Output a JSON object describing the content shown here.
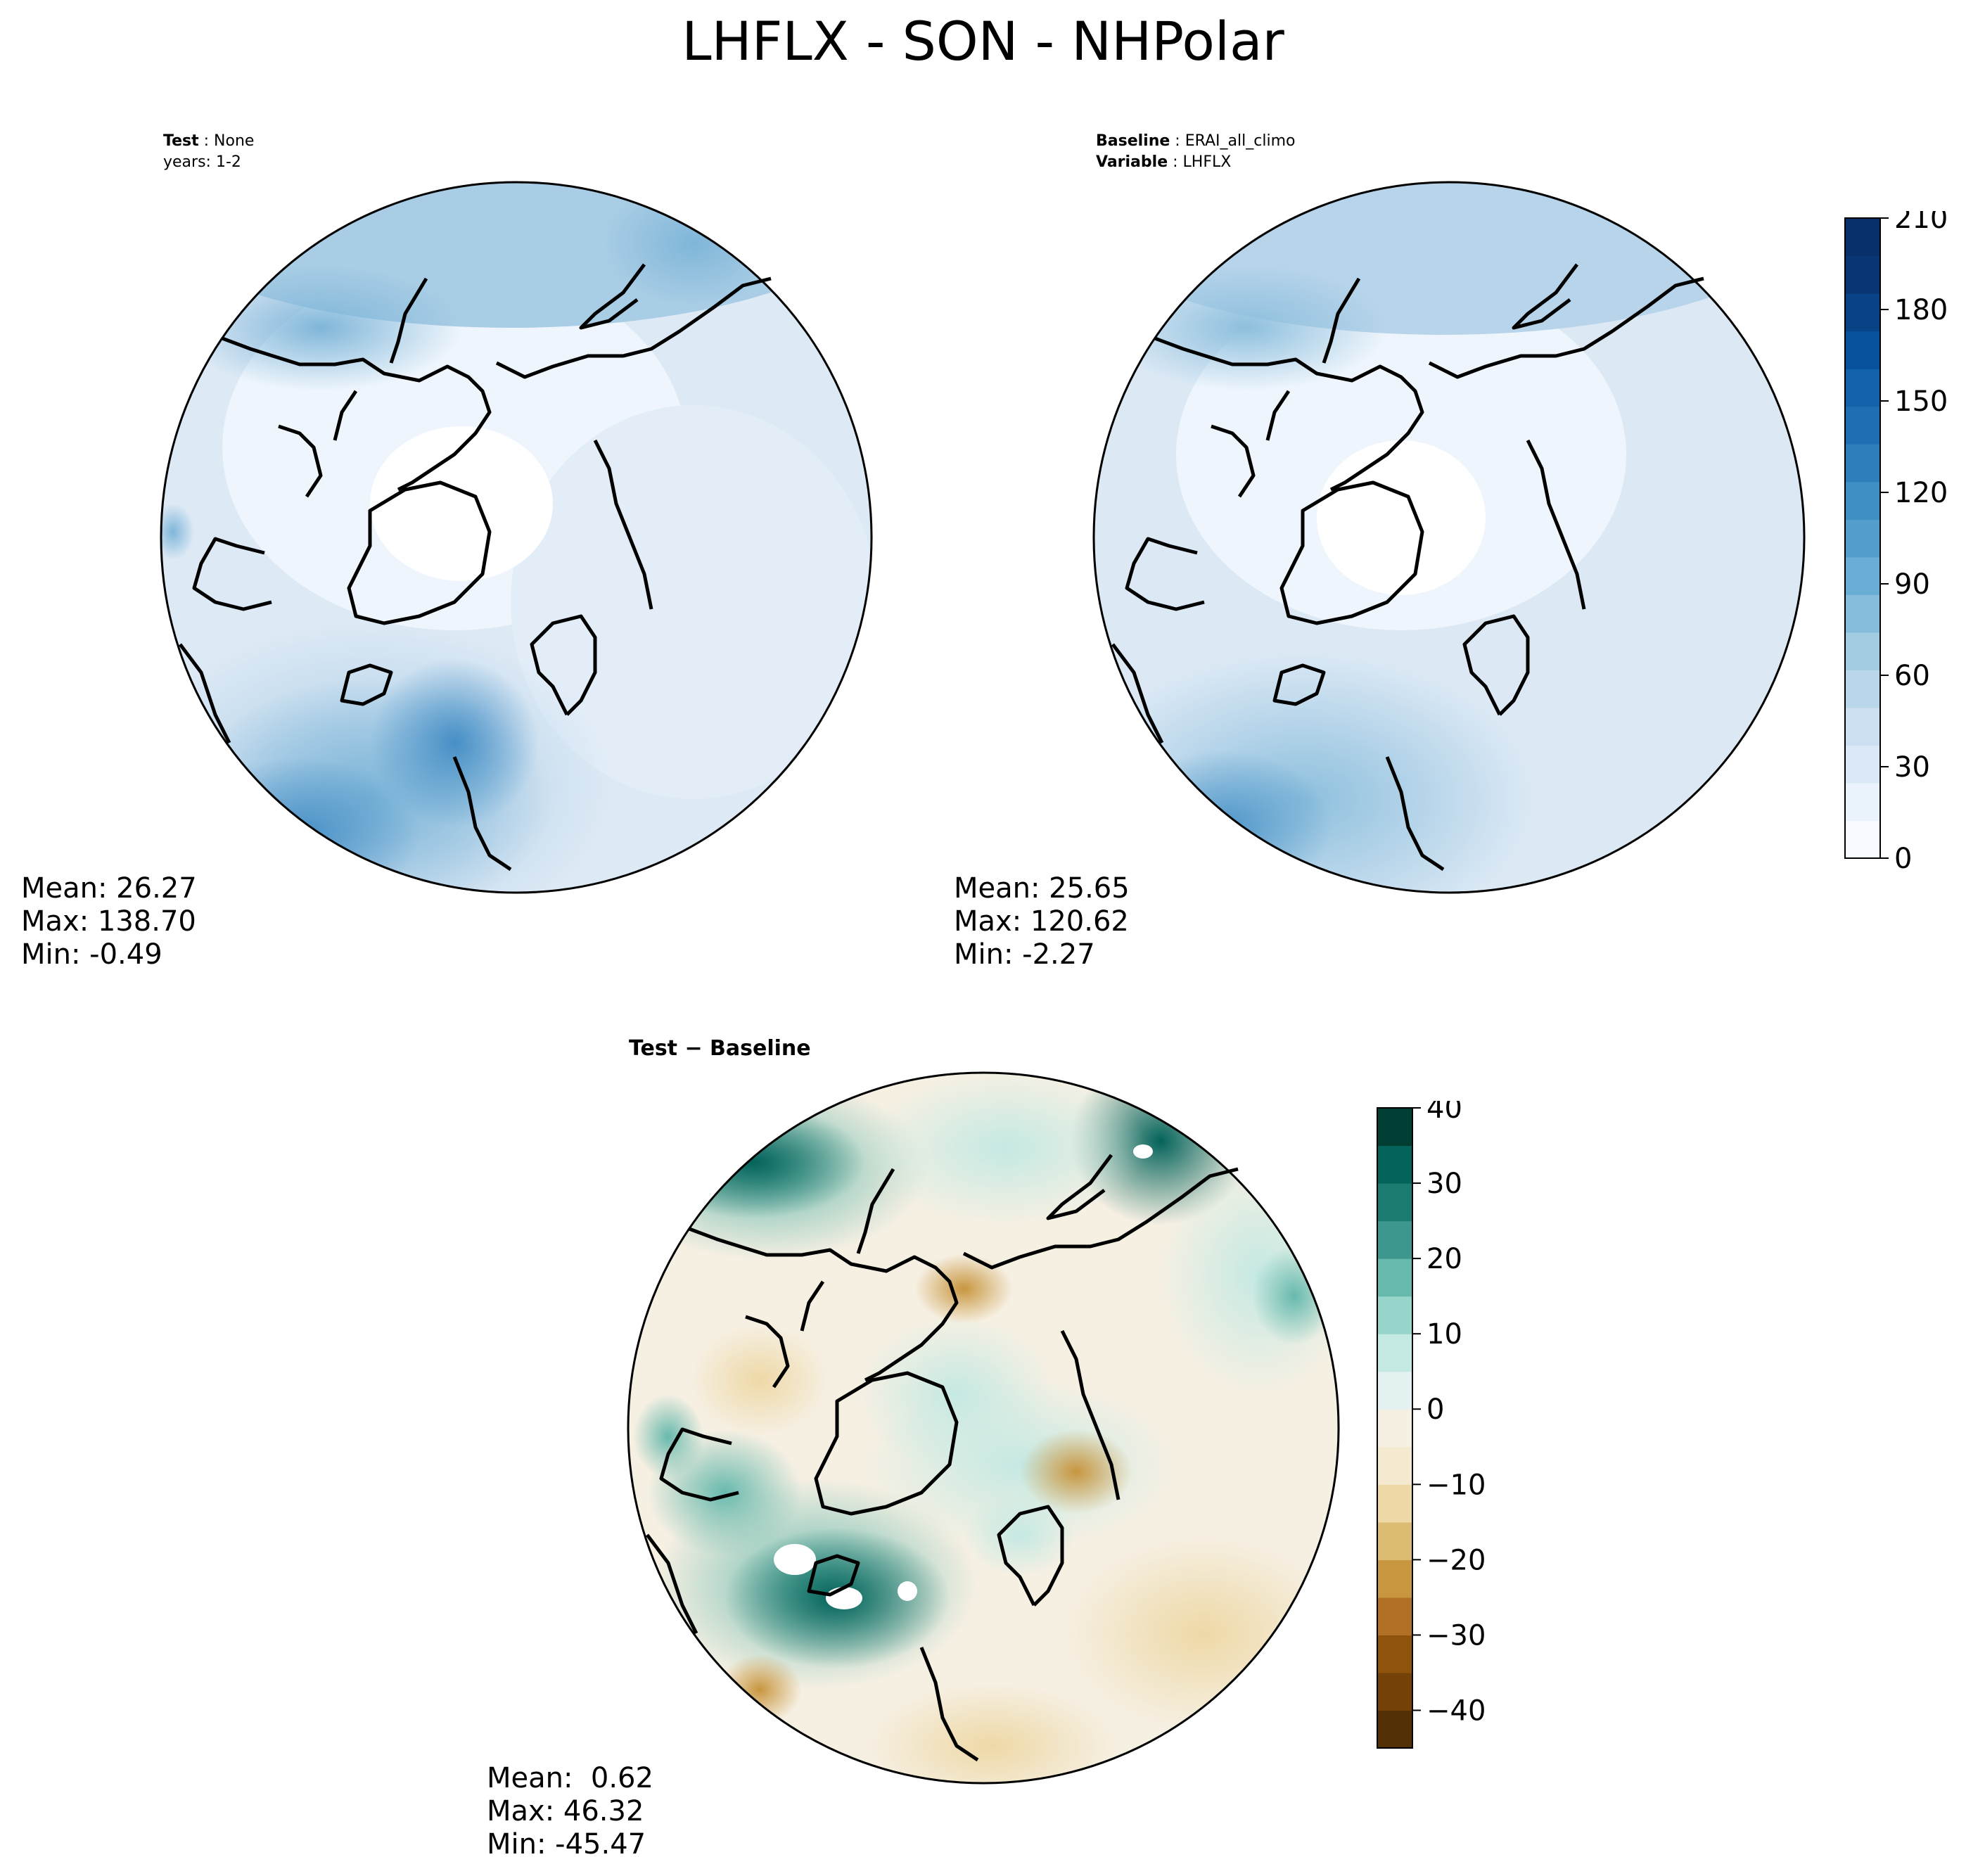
{
  "title": "LHFLX - SON - NHPolar",
  "test_panel": {
    "label_key": "Test",
    "label_value": "None",
    "years": "years: 1-2",
    "stats": {
      "mean": "Mean: 26.27",
      "max": "Max: 138.70",
      "min": "Min: -0.49"
    }
  },
  "baseline_panel": {
    "label_key": "Baseline",
    "label_value": "ERAI_all_climo",
    "variable_key": "Variable",
    "variable_value": "LHFLX",
    "stats": {
      "mean": "Mean: 25.65",
      "max": "Max: 120.62",
      "min": "Min: -2.27"
    }
  },
  "diff_panel": {
    "title": "Test − Baseline",
    "stats": {
      "mean": "Mean:  0.62",
      "max": "Max: 46.32",
      "min": "Min: -45.47"
    }
  },
  "colorbar_top": {
    "ticks": [
      "210",
      "180",
      "150",
      "120",
      "90",
      "60",
      "30",
      "0"
    ],
    "colors": [
      "#f7fbff",
      "#eaf2fb",
      "#dbe9f6",
      "#cde0f1",
      "#bad6eb",
      "#a3cce3",
      "#87bddc",
      "#6aaed6",
      "#539ecd",
      "#3f8fc5",
      "#2e7ebc",
      "#1f6eb3",
      "#1361a9",
      "#08519c",
      "#084387",
      "#083674",
      "#08306b"
    ]
  },
  "colorbar_diff": {
    "ticks": [
      "40",
      "30",
      "20",
      "10",
      "0",
      "−10",
      "−20",
      "−30",
      "−40"
    ],
    "colors": [
      "#543005",
      "#744108",
      "#8f530c",
      "#b07026",
      "#c8963f",
      "#dbbc72",
      "#eed8a6",
      "#f5eacf",
      "#f6f0e3",
      "#e3f2f0",
      "#c4e9e3",
      "#97d5ca",
      "#68b9ad",
      "#3d978e",
      "#1c7b71",
      "#04635a",
      "#013f34"
    ]
  },
  "chart_data": {
    "type": "heatmap",
    "projection": "north-polar-stereographic",
    "variable": "LHFLX",
    "season": "SON",
    "region": "NHPolar",
    "panels": [
      {
        "name": "Test",
        "mean": 26.27,
        "max": 138.7,
        "min": -0.49,
        "colorbar_range": [
          0,
          210
        ]
      },
      {
        "name": "Baseline",
        "mean": 25.65,
        "max": 120.62,
        "min": -2.27,
        "colorbar_range": [
          0,
          210
        ]
      },
      {
        "name": "Test − Baseline",
        "mean": 0.62,
        "max": 46.32,
        "min": -45.47,
        "colorbar_range": [
          -45,
          40
        ]
      }
    ]
  }
}
